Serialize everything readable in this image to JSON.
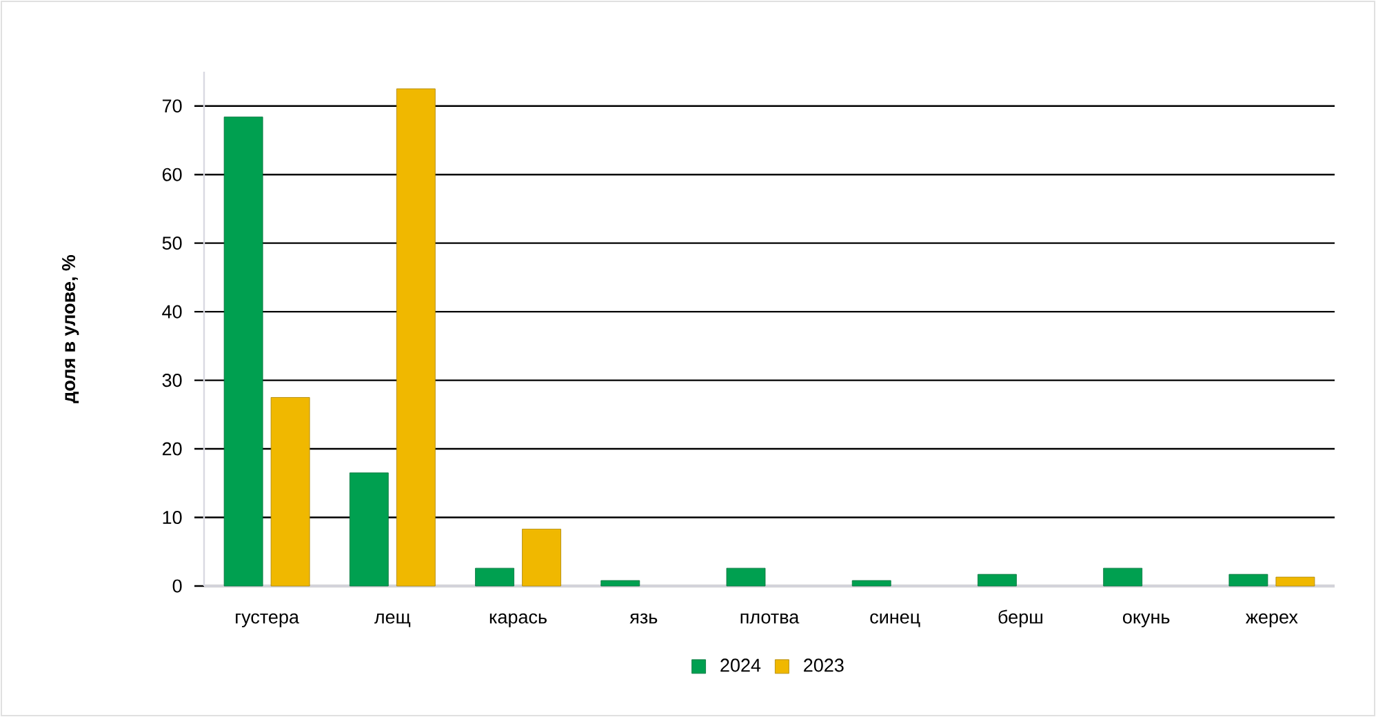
{
  "chart_data": {
    "type": "bar",
    "ylabel": "доля в улове, %",
    "categories": [
      "густера",
      "лещ",
      "карась",
      "язь",
      "плотва",
      "синец",
      "берш",
      "окунь",
      "жерех"
    ],
    "series": [
      {
        "name": "2024",
        "color": "#00a050",
        "values": [
          68.4,
          16.5,
          2.6,
          0.8,
          2.6,
          0.8,
          1.7,
          2.6,
          1.7
        ]
      },
      {
        "name": "2023",
        "color": "#f0b800",
        "values": [
          27.5,
          72.5,
          8.3,
          null,
          null,
          null,
          null,
          null,
          1.3
        ]
      }
    ],
    "ylim": [
      0,
      75
    ],
    "yticks": [
      0,
      10,
      20,
      30,
      40,
      50,
      60,
      70
    ],
    "grid": "y",
    "legend": "bottom"
  }
}
